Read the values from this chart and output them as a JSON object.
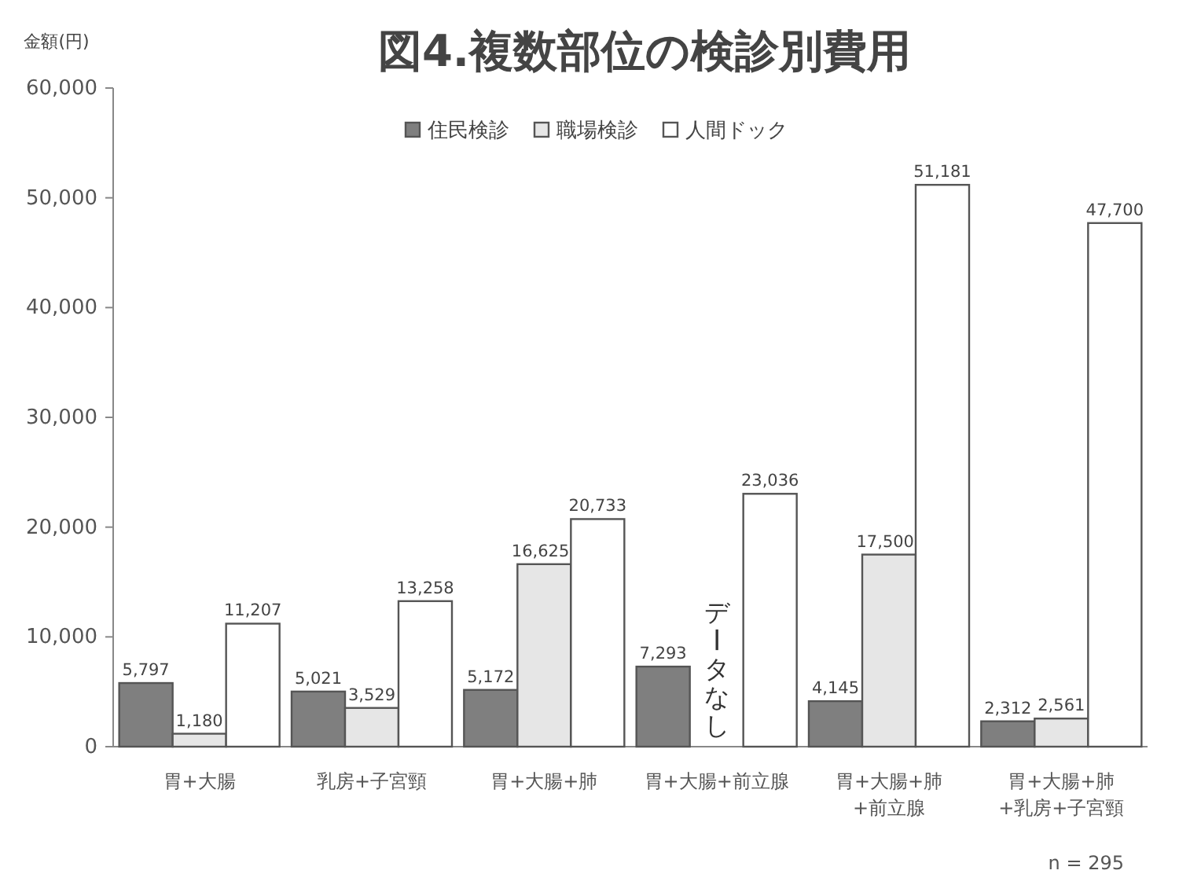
{
  "chart_data": {
    "type": "bar",
    "title": "図4.複数部位の検診別費用",
    "ylabel": "金額(円)",
    "categories": [
      "胃+大腸",
      "乳房+子宮頸",
      "胃+大腸+肺",
      "胃+大腸+前立腺",
      "胃+大腸+肺\n+前立腺",
      "胃+大腸+肺\n+乳房+子宮頸"
    ],
    "series": [
      {
        "name": "住民検診",
        "color": "#7f7f7f",
        "values": [
          5797,
          5021,
          5172,
          7293,
          4145,
          2312
        ],
        "value_labels": [
          "5,797",
          "5,021",
          "5,172",
          "7,293",
          "4,145",
          "2,312"
        ]
      },
      {
        "name": "職場検診",
        "color": "#e6e6e6",
        "values": [
          1180,
          3529,
          16625,
          null,
          17500,
          2561
        ],
        "value_labels": [
          "1,180",
          "3,529",
          "16,625",
          null,
          "17,500",
          "2,561"
        ]
      },
      {
        "name": "人間ドック",
        "color": "#ffffff",
        "values": [
          11207,
          13258,
          20733,
          23036,
          51181,
          47700
        ],
        "value_labels": [
          "11,207",
          "13,258",
          "20,733",
          "23,036",
          "51,181",
          "47,700"
        ]
      }
    ],
    "ylim": [
      0,
      60000
    ],
    "yticks": [
      {
        "value": 0,
        "label": "0"
      },
      {
        "value": 10000,
        "label": "10,000"
      },
      {
        "value": 20000,
        "label": "20,000"
      },
      {
        "value": 30000,
        "label": "30,000"
      },
      {
        "value": 40000,
        "label": "40,000"
      },
      {
        "value": 50000,
        "label": "50,000"
      },
      {
        "value": 60000,
        "label": "60,000"
      }
    ],
    "legend": "top",
    "grid": false,
    "annotations": [
      "データなし",
      "n = 295"
    ]
  }
}
